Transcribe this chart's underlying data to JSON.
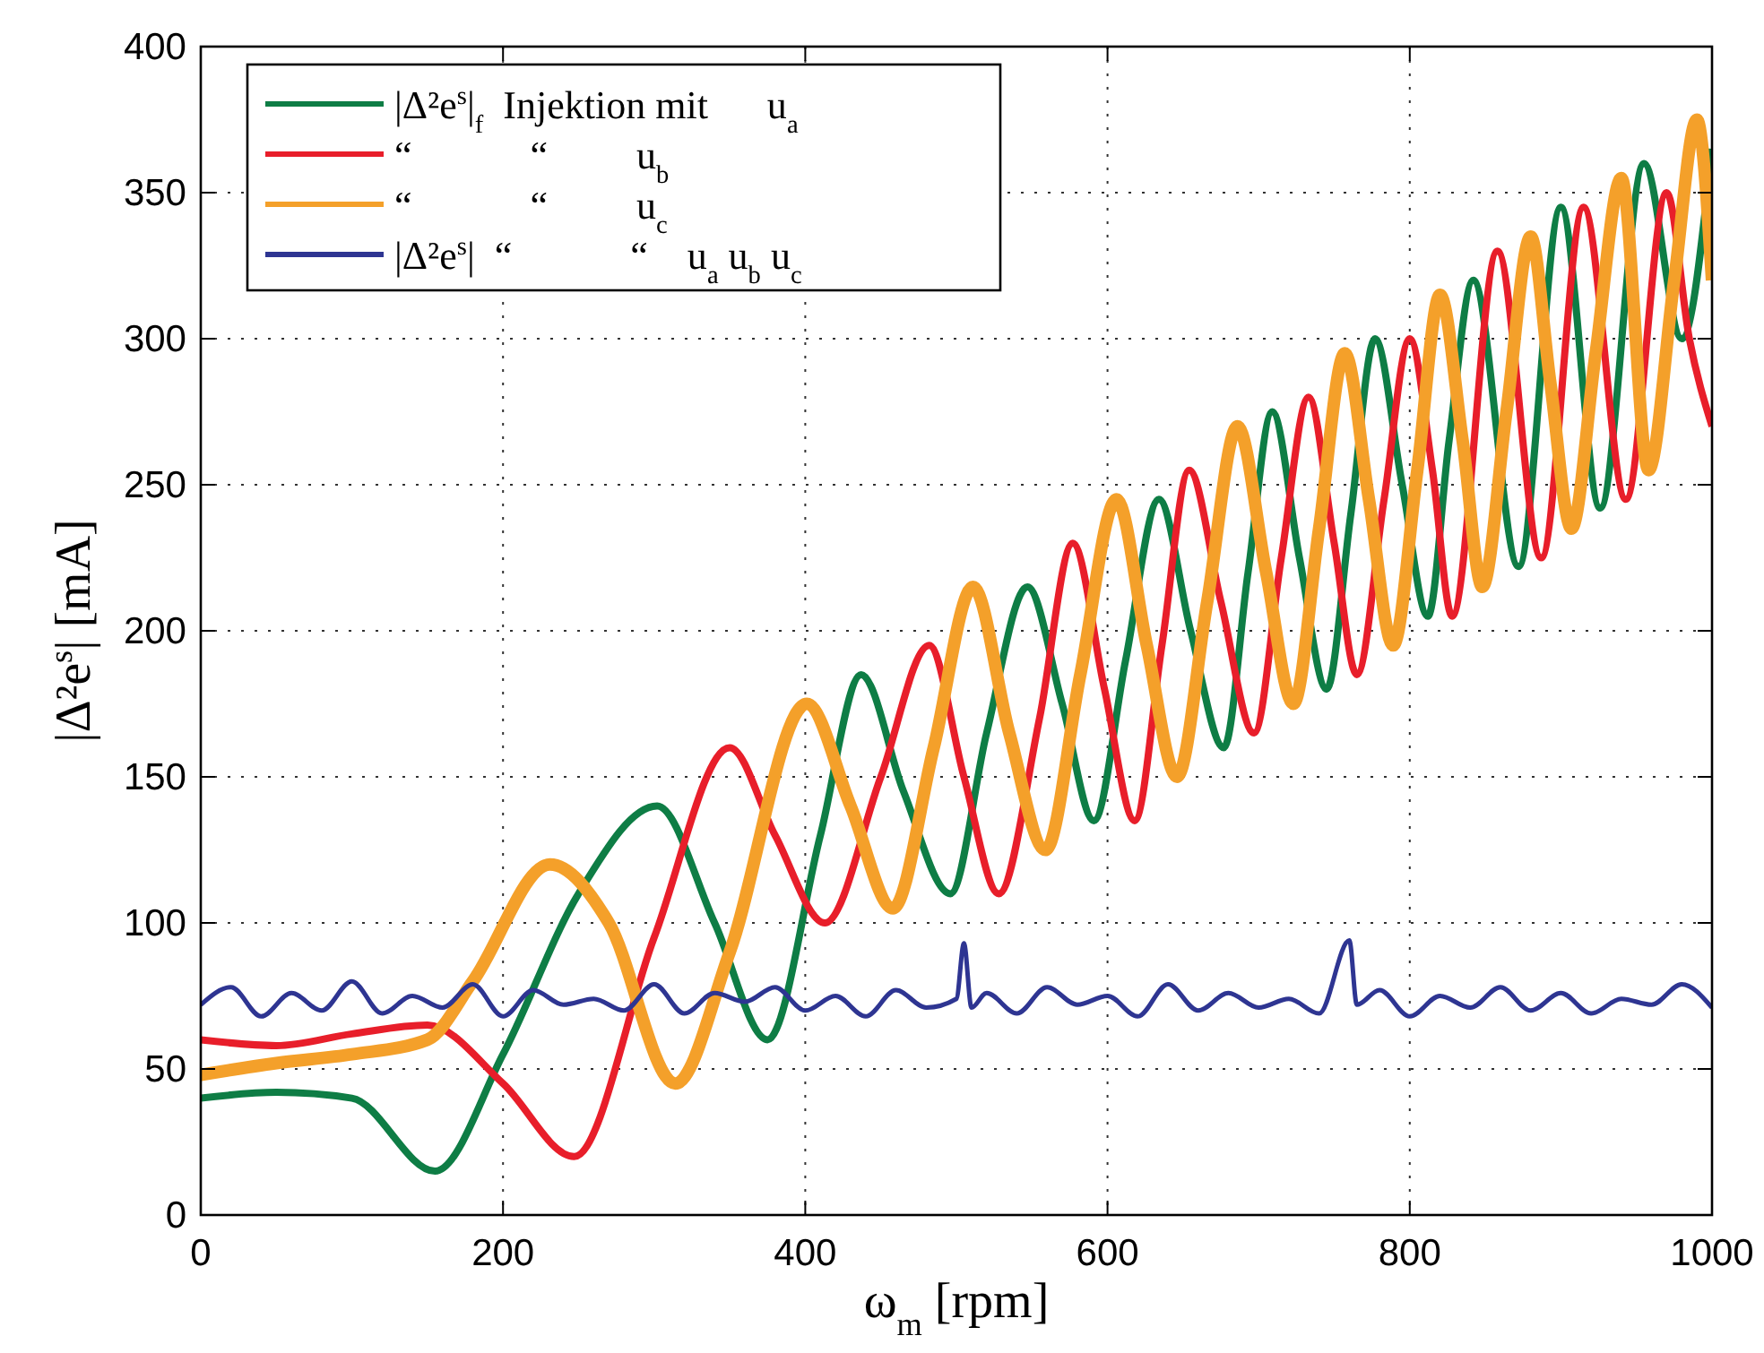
{
  "chart_data": {
    "type": "line",
    "xlabel": "ω$_{m}$ [rpm]",
    "ylabel": "|Δ²e$^{s}$| [mA]",
    "xlim": [
      0,
      1000
    ],
    "ylim": [
      0,
      400
    ],
    "xticks": [
      0,
      200,
      400,
      600,
      800,
      1000
    ],
    "yticks": [
      0,
      50,
      100,
      150,
      200,
      250,
      300,
      350,
      400
    ],
    "grid": true,
    "legend": "top left",
    "series": [
      {
        "name": "|Δ²e$^{s}$|$_{f}$  Injektion mit      u$_{a}$",
        "color": "#0e7d45",
        "x": [
          0,
          50,
          100,
          155,
          200,
          250,
          302,
          340,
          375,
          410,
          437,
          465,
          496,
          520,
          547,
          570,
          591,
          612,
          634,
          655,
          677,
          693,
          709,
          727,
          745,
          761,
          777,
          795,
          812,
          826,
          842,
          872,
          900,
          926,
          955,
          980,
          1000
        ],
        "values": [
          40,
          42,
          40,
          15,
          55,
          110,
          140,
          100,
          60,
          130,
          185,
          145,
          110,
          165,
          215,
          175,
          135,
          190,
          245,
          200,
          160,
          220,
          275,
          225,
          180,
          240,
          300,
          250,
          205,
          265,
          320,
          222,
          345,
          242,
          360,
          300,
          365
        ]
      },
      {
        "name": "“            “         u$_{b}$",
        "color": "#e81e2a",
        "x": [
          0,
          50,
          100,
          150,
          200,
          247,
          300,
          350,
          380,
          413,
          450,
          482,
          505,
          528,
          555,
          577,
          598,
          618,
          636,
          654,
          675,
          697,
          715,
          733,
          750,
          765,
          783,
          800,
          815,
          828,
          858,
          887,
          915,
          943,
          970,
          985,
          1000
        ],
        "values": [
          60,
          58,
          62,
          65,
          45,
          20,
          95,
          160,
          130,
          100,
          150,
          195,
          150,
          110,
          170,
          230,
          180,
          135,
          195,
          255,
          210,
          165,
          225,
          280,
          230,
          185,
          245,
          300,
          255,
          205,
          330,
          225,
          345,
          245,
          350,
          300,
          270
        ]
      },
      {
        "name": "“            “         u$_{c}$",
        "color": "#f4a02a",
        "x": [
          0,
          50,
          100,
          150,
          180,
          231,
          270,
          314,
          350,
          401,
          430,
          458,
          485,
          511,
          535,
          559,
          582,
          606,
          626,
          646,
          666,
          686,
          705,
          723,
          740,
          757,
          773,
          789,
          805,
          820,
          835,
          848,
          864,
          880,
          893,
          907,
          923,
          940,
          958,
          975,
          990,
          1000
        ],
        "values": [
          48,
          52,
          55,
          60,
          80,
          120,
          100,
          45,
          90,
          175,
          140,
          105,
          160,
          215,
          165,
          125,
          185,
          245,
          195,
          150,
          210,
          270,
          220,
          175,
          235,
          295,
          245,
          195,
          255,
          315,
          265,
          215,
          275,
          335,
          285,
          235,
          295,
          355,
          255,
          320,
          375,
          320
        ]
      },
      {
        "name": "|Δ²e$^{s}$|  “            “    u$_{a}$ u$_{b}$ u$_{c}$",
        "color": "#2e3592",
        "x": [
          0,
          20,
          40,
          60,
          80,
          100,
          120,
          140,
          160,
          180,
          200,
          220,
          240,
          260,
          280,
          300,
          320,
          340,
          360,
          380,
          400,
          420,
          440,
          460,
          480,
          500,
          505,
          510,
          520,
          540,
          560,
          580,
          600,
          620,
          640,
          660,
          680,
          700,
          720,
          740,
          760,
          765,
          780,
          800,
          820,
          840,
          860,
          880,
          900,
          920,
          940,
          960,
          980,
          1000
        ],
        "values": [
          72,
          78,
          68,
          76,
          70,
          80,
          69,
          75,
          71,
          79,
          68,
          77,
          72,
          74,
          70,
          79,
          69,
          76,
          73,
          78,
          70,
          75,
          68,
          77,
          71,
          74,
          93,
          71,
          76,
          69,
          78,
          72,
          75,
          68,
          79,
          70,
          76,
          71,
          74,
          69,
          94,
          72,
          77,
          68,
          75,
          71,
          78,
          70,
          76,
          69,
          74,
          72,
          79,
          71
        ]
      }
    ]
  }
}
